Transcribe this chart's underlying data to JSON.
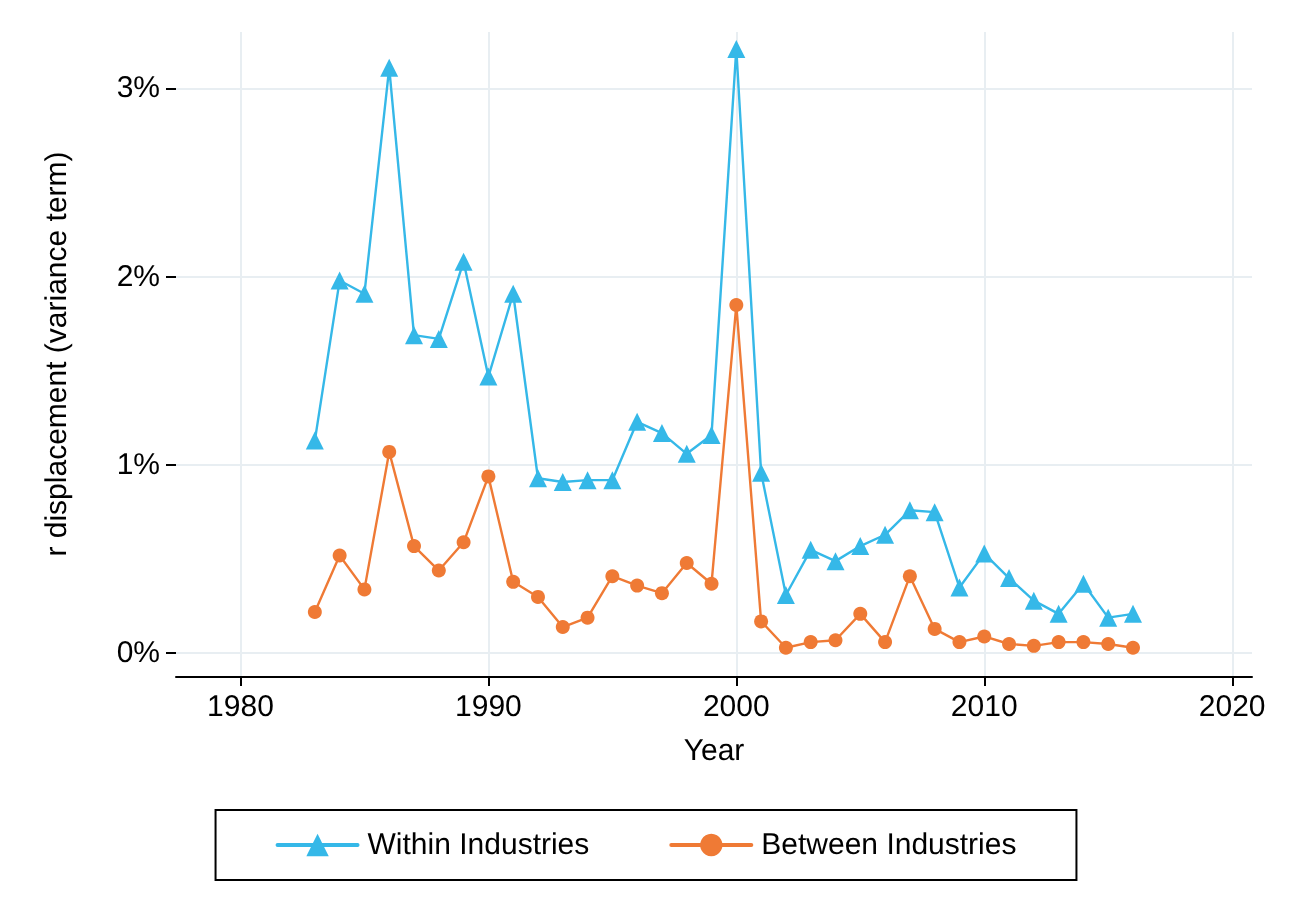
{
  "chart_data": {
    "type": "line",
    "xlabel": "Year",
    "ylabel": "r displacement (variance term)",
    "x": [
      1983,
      1984,
      1985,
      1986,
      1987,
      1988,
      1989,
      1990,
      1991,
      1992,
      1993,
      1994,
      1995,
      1996,
      1997,
      1998,
      1999,
      2000,
      2001,
      2002,
      2003,
      2004,
      2005,
      2006,
      2007,
      2008,
      2009,
      2010,
      2011,
      2012,
      2013,
      2014,
      2015,
      2016
    ],
    "series": [
      {
        "name": "Within Industries",
        "color": "#35b8e8",
        "marker": "triangle",
        "values": [
          1.13,
          1.98,
          1.91,
          3.11,
          1.69,
          1.67,
          2.08,
          1.47,
          1.91,
          0.93,
          0.91,
          0.92,
          0.92,
          1.23,
          1.17,
          1.06,
          1.16,
          3.21,
          0.96,
          0.31,
          0.55,
          0.49,
          0.57,
          0.63,
          0.76,
          0.75,
          0.35,
          0.53,
          0.4,
          0.28,
          0.21,
          0.37,
          0.19,
          0.21
        ]
      },
      {
        "name": "Between Industries",
        "color": "#ef7a35",
        "marker": "circle",
        "values": [
          0.22,
          0.52,
          0.34,
          1.07,
          0.57,
          0.44,
          0.59,
          0.94,
          0.38,
          0.3,
          0.14,
          0.19,
          0.41,
          0.36,
          0.32,
          0.48,
          0.37,
          1.85,
          0.17,
          0.03,
          0.06,
          0.07,
          0.21,
          0.06,
          0.41,
          0.13,
          0.06,
          0.09,
          0.05,
          0.04,
          0.06,
          0.06,
          0.05,
          0.03
        ]
      }
    ],
    "xlim": [
      1977.4,
      2020.8
    ],
    "xticks": [
      1980,
      1990,
      2000,
      2010,
      2020
    ],
    "ylim": [
      -0.12,
      3.3
    ],
    "yticks": [
      {
        "value": 0,
        "label": "0%"
      },
      {
        "value": 1,
        "label": "1%"
      },
      {
        "value": 2,
        "label": "2%"
      },
      {
        "value": 3,
        "label": "3%"
      }
    ],
    "grid": true,
    "legend": "bottom",
    "line_style": "solid"
  }
}
